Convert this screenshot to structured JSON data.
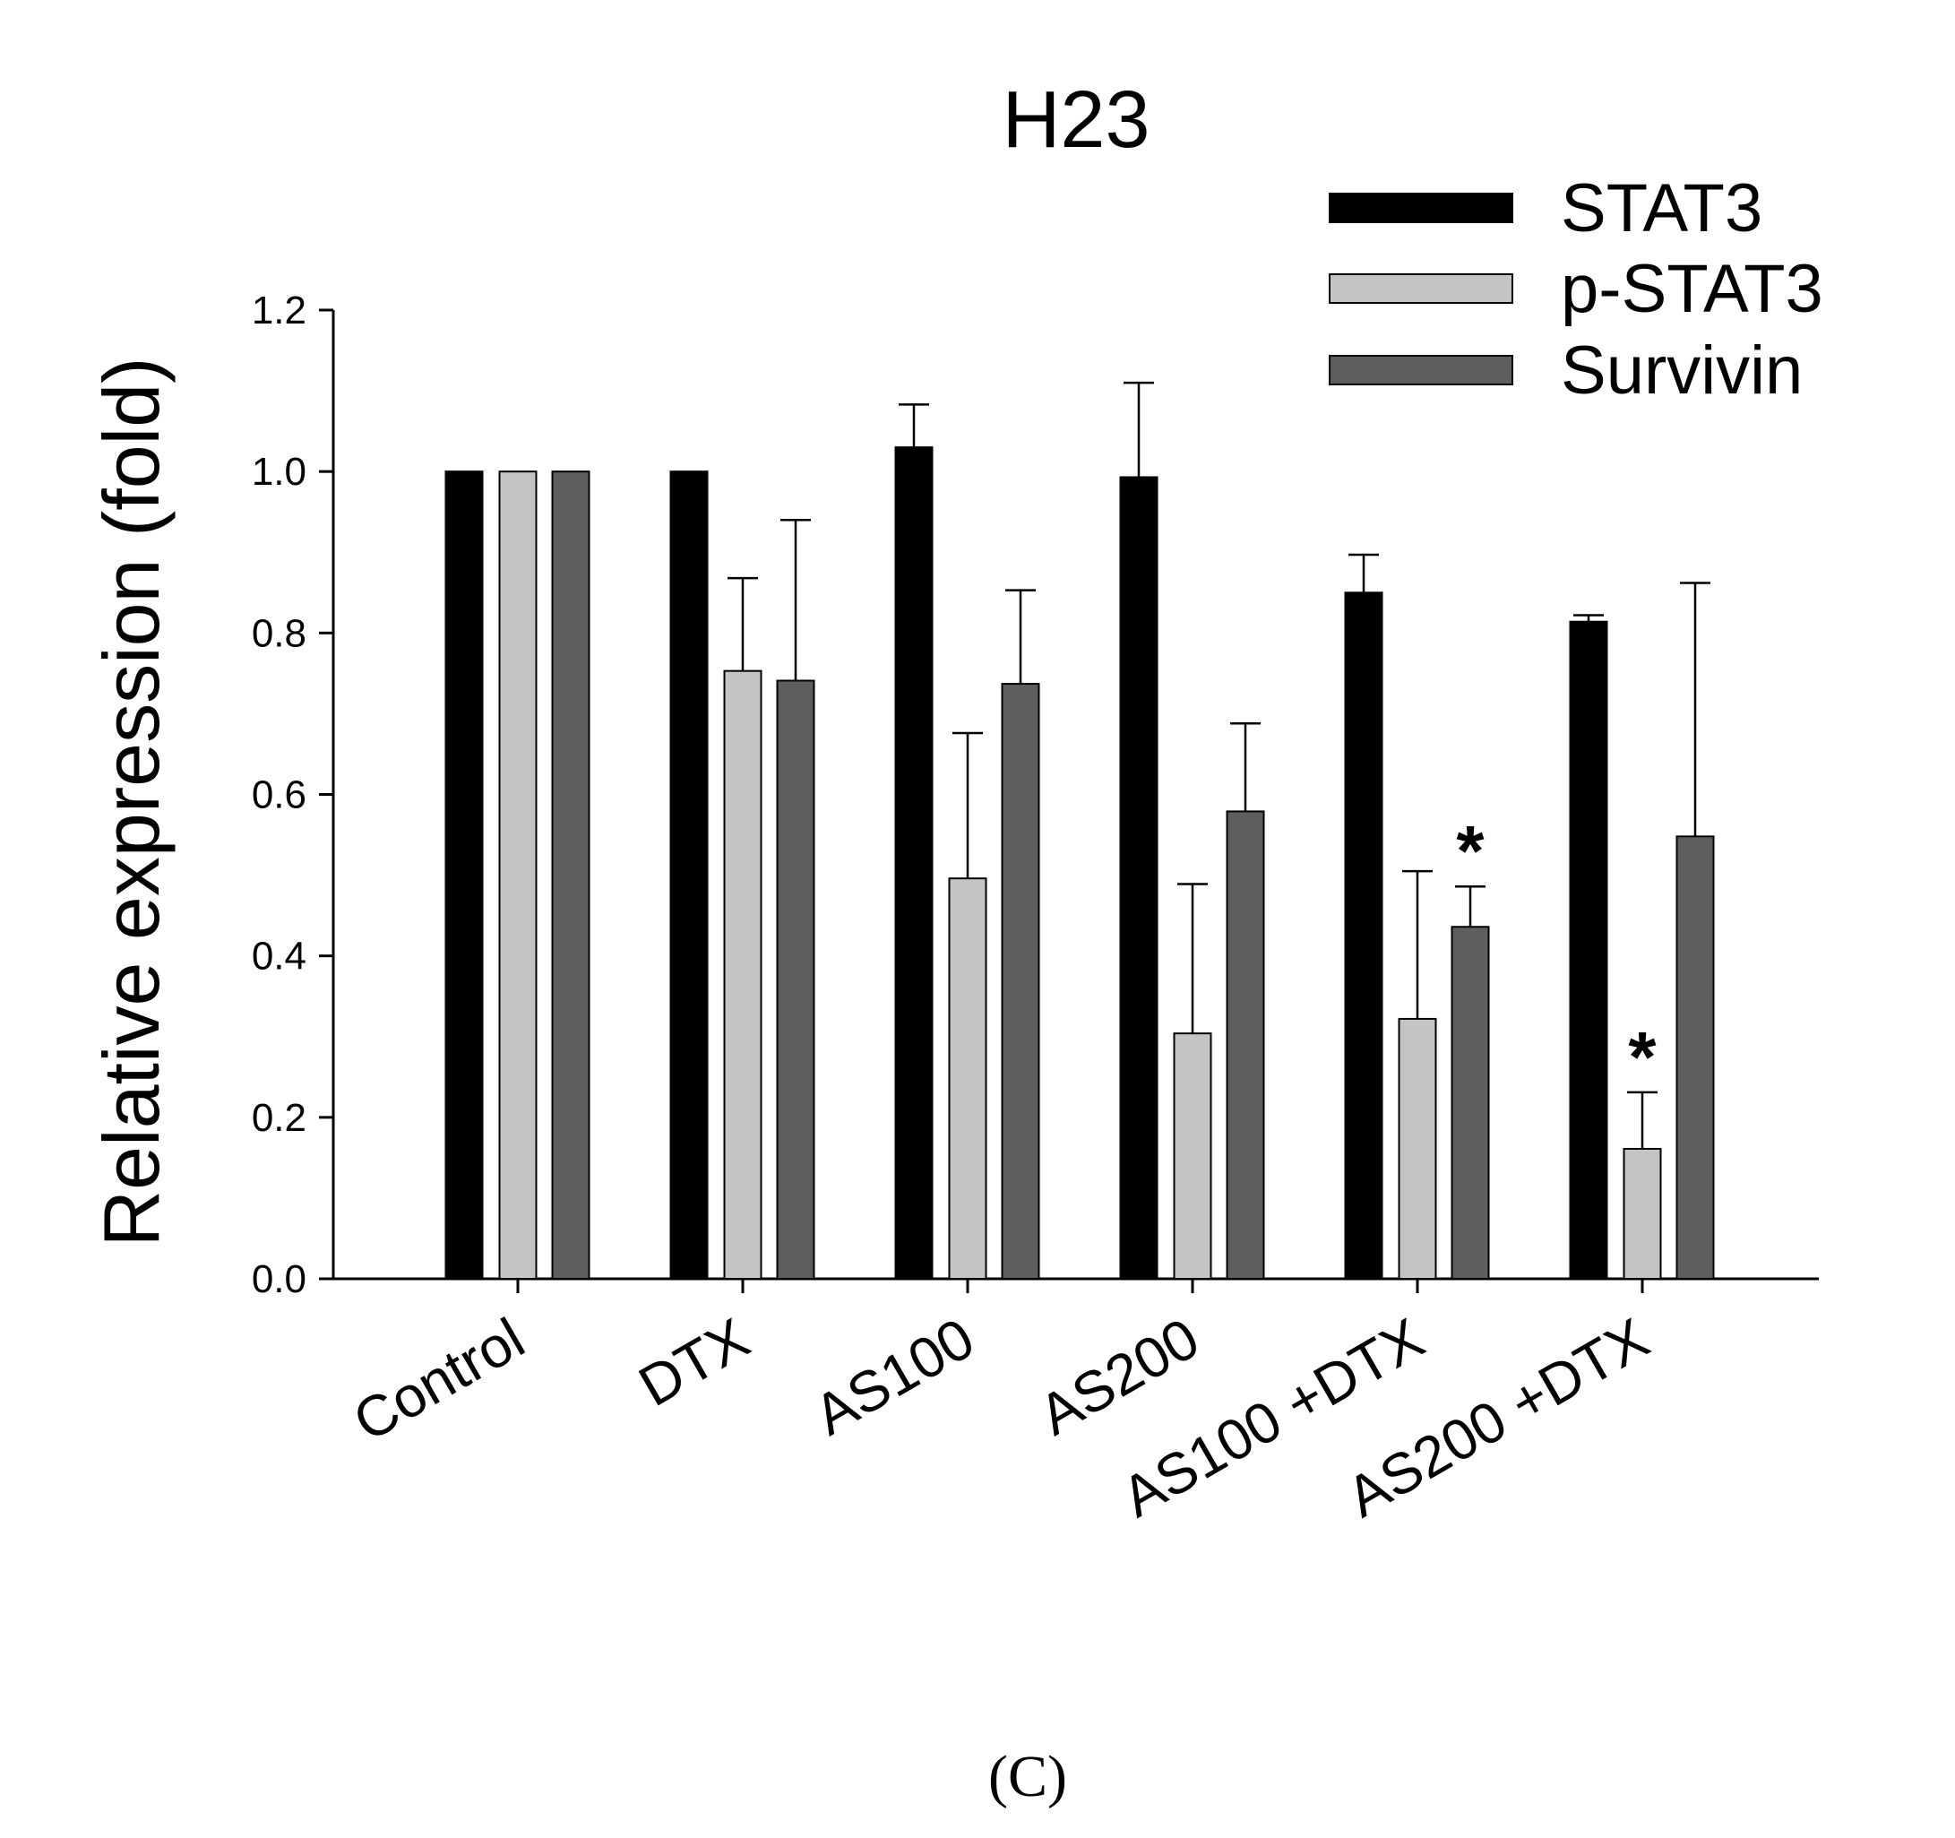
{
  "panel_label": "(C)",
  "chart_data": {
    "type": "bar",
    "title": "H23",
    "xlabel": "",
    "ylabel": "Relative expression (fold)",
    "ylim": [
      0,
      1.2
    ],
    "yticks": [
      "0.0",
      "0.2",
      "0.4",
      "0.6",
      "0.8",
      "1.0",
      "1.2"
    ],
    "categories": [
      "Control",
      "DTX",
      "AS100",
      "AS200",
      "AS100 +DTX",
      "AS200 +DTX"
    ],
    "legend_position": "top-right",
    "series": [
      {
        "name": "STAT3",
        "color": "#000000",
        "values": [
          1.0,
          1.0,
          1.03,
          0.993,
          0.85,
          0.814
        ],
        "errors": [
          0.0,
          0.0,
          0.053,
          0.117,
          0.047,
          0.008
        ]
      },
      {
        "name": "p-STAT3",
        "color": "#c4c4c4",
        "values": [
          1.0,
          0.753,
          0.496,
          0.304,
          0.322,
          0.161
        ],
        "errors": [
          0.0,
          0.115,
          0.18,
          0.185,
          0.183,
          0.07
        ]
      },
      {
        "name": "Survivin",
        "color": "#5e5e5e",
        "values": [
          1.0,
          0.741,
          0.737,
          0.579,
          0.436,
          0.548
        ],
        "errors": [
          0.0,
          0.199,
          0.116,
          0.109,
          0.05,
          0.314
        ]
      }
    ],
    "annotations": [
      {
        "text": "*",
        "category": "AS100 +DTX",
        "series": "Survivin"
      },
      {
        "text": "*",
        "category": "AS200 +DTX",
        "series": "p-STAT3"
      }
    ]
  }
}
